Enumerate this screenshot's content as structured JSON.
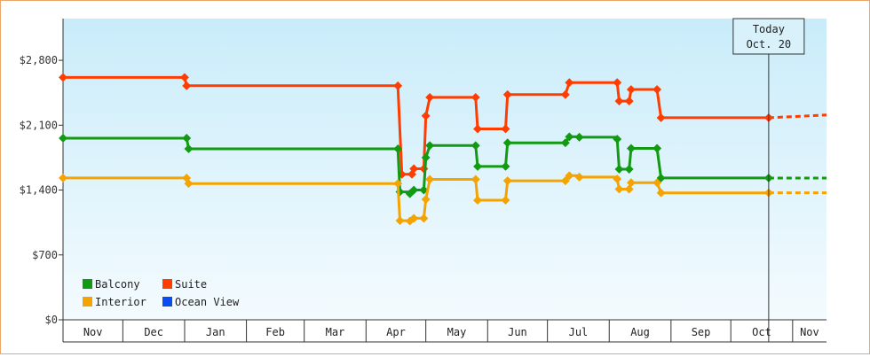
{
  "chart_data": {
    "type": "line",
    "y_axis": {
      "min": 0,
      "max": 3250,
      "ticks": [
        {
          "value": 0,
          "label": "$0"
        },
        {
          "value": 700,
          "label": "$700"
        },
        {
          "value": 1400,
          "label": "$1,400"
        },
        {
          "value": 2100,
          "label": "$2,100"
        },
        {
          "value": 2800,
          "label": "$2,800"
        }
      ]
    },
    "x_axis": {
      "start": "2011-11-01",
      "end": "2012-11-18",
      "months": [
        {
          "label": "Nov",
          "start": "2011-11-01",
          "end": "2011-12-01"
        },
        {
          "label": "Dec",
          "start": "2011-12-01",
          "end": "2012-01-01"
        },
        {
          "label": "Jan",
          "start": "2012-01-01",
          "end": "2012-02-01"
        },
        {
          "label": "Feb",
          "start": "2012-02-01",
          "end": "2012-03-01"
        },
        {
          "label": "Mar",
          "start": "2012-03-01",
          "end": "2012-04-01"
        },
        {
          "label": "Apr",
          "start": "2012-04-01",
          "end": "2012-05-01"
        },
        {
          "label": "May",
          "start": "2012-05-01",
          "end": "2012-06-01"
        },
        {
          "label": "Jun",
          "start": "2012-06-01",
          "end": "2012-07-01"
        },
        {
          "label": "Jul",
          "start": "2012-07-01",
          "end": "2012-08-01"
        },
        {
          "label": "Aug",
          "start": "2012-08-01",
          "end": "2012-09-01"
        },
        {
          "label": "Sep",
          "start": "2012-09-01",
          "end": "2012-10-01"
        },
        {
          "label": "Oct",
          "start": "2012-10-01",
          "end": "2012-11-01"
        },
        {
          "label": "Nov",
          "start": "2012-11-01",
          "end": "2012-11-18"
        }
      ]
    },
    "grid": false,
    "today": {
      "date": "2012-10-20",
      "label_line1": "Today",
      "label_line2": "Oct. 20"
    },
    "forecast_end": "2012-11-18",
    "legend": {
      "placement": "bottom-left",
      "items": [
        {
          "name": "Balcony",
          "color": "#139a13"
        },
        {
          "name": "Suite",
          "color": "#ff3d00"
        },
        {
          "name": "Interior",
          "color": "#f5a300"
        },
        {
          "name": "Ocean View",
          "color": "#0a4cf0"
        }
      ]
    },
    "series": [
      {
        "name": "Suite",
        "color": "#ff3d00",
        "points": [
          [
            "2011-11-01",
            2615
          ],
          [
            "2012-01-01",
            2615
          ],
          [
            "2012-01-02",
            2525
          ],
          [
            "2012-04-17",
            2525
          ],
          [
            "2012-04-19",
            1570
          ],
          [
            "2012-04-24",
            1570
          ],
          [
            "2012-04-25",
            1630
          ],
          [
            "2012-04-30",
            1630
          ],
          [
            "2012-05-01",
            2200
          ],
          [
            "2012-05-03",
            2400
          ],
          [
            "2012-05-26",
            2400
          ],
          [
            "2012-05-27",
            2060
          ],
          [
            "2012-06-10",
            2060
          ],
          [
            "2012-06-11",
            2430
          ],
          [
            "2012-07-10",
            2430
          ],
          [
            "2012-07-12",
            2560
          ],
          [
            "2012-08-05",
            2560
          ],
          [
            "2012-08-06",
            2360
          ],
          [
            "2012-08-11",
            2360
          ],
          [
            "2012-08-12",
            2485
          ],
          [
            "2012-08-25",
            2485
          ],
          [
            "2012-08-27",
            2180
          ],
          [
            "2012-10-20",
            2180
          ]
        ],
        "forecast_end_value": 2210
      },
      {
        "name": "Balcony",
        "color": "#139a13",
        "points": [
          [
            "2011-11-01",
            1960
          ],
          [
            "2012-01-02",
            1960
          ],
          [
            "2012-01-03",
            1845
          ],
          [
            "2012-04-17",
            1845
          ],
          [
            "2012-04-18",
            1380
          ],
          [
            "2012-04-23",
            1360
          ],
          [
            "2012-04-25",
            1400
          ],
          [
            "2012-04-30",
            1400
          ],
          [
            "2012-05-01",
            1750
          ],
          [
            "2012-05-03",
            1880
          ],
          [
            "2012-05-26",
            1880
          ],
          [
            "2012-05-27",
            1655
          ],
          [
            "2012-06-10",
            1655
          ],
          [
            "2012-06-11",
            1910
          ],
          [
            "2012-07-10",
            1910
          ],
          [
            "2012-07-12",
            1975
          ],
          [
            "2012-07-17",
            1970
          ],
          [
            "2012-08-05",
            1950
          ],
          [
            "2012-08-06",
            1625
          ],
          [
            "2012-08-11",
            1625
          ],
          [
            "2012-08-12",
            1850
          ],
          [
            "2012-08-25",
            1850
          ],
          [
            "2012-08-27",
            1530
          ],
          [
            "2012-10-20",
            1530
          ]
        ],
        "forecast_end_value": 1530
      },
      {
        "name": "Interior",
        "color": "#f5a300",
        "points": [
          [
            "2011-11-01",
            1530
          ],
          [
            "2012-01-02",
            1530
          ],
          [
            "2012-01-03",
            1470
          ],
          [
            "2012-04-17",
            1470
          ],
          [
            "2012-04-18",
            1070
          ],
          [
            "2012-04-23",
            1065
          ],
          [
            "2012-04-25",
            1095
          ],
          [
            "2012-04-30",
            1095
          ],
          [
            "2012-05-01",
            1300
          ],
          [
            "2012-05-03",
            1515
          ],
          [
            "2012-05-26",
            1515
          ],
          [
            "2012-05-27",
            1290
          ],
          [
            "2012-06-10",
            1290
          ],
          [
            "2012-06-11",
            1500
          ],
          [
            "2012-07-10",
            1500
          ],
          [
            "2012-07-12",
            1555
          ],
          [
            "2012-07-17",
            1540
          ],
          [
            "2012-08-05",
            1520
          ],
          [
            "2012-08-06",
            1410
          ],
          [
            "2012-08-11",
            1410
          ],
          [
            "2012-08-12",
            1480
          ],
          [
            "2012-08-25",
            1480
          ],
          [
            "2012-08-27",
            1370
          ],
          [
            "2012-10-20",
            1370
          ]
        ],
        "forecast_end_value": 1370
      }
    ]
  }
}
